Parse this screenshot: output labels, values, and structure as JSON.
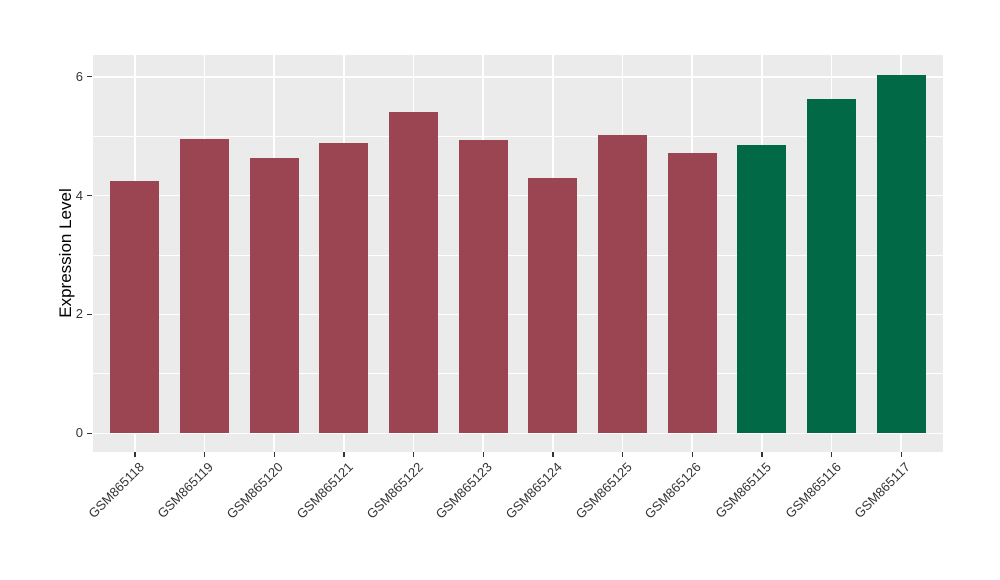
{
  "figure": {
    "title": "",
    "y_axis_title": "Expression Level"
  },
  "chart_data": {
    "type": "bar",
    "title": "",
    "xlabel": "",
    "ylabel": "Expression Level",
    "categories": [
      "GSM865118",
      "GSM865119",
      "GSM865120",
      "GSM865121",
      "GSM865122",
      "GSM865123",
      "GSM865124",
      "GSM865125",
      "GSM865126",
      "GSM865115",
      "GSM865116",
      "GSM865117"
    ],
    "values": [
      4.25,
      4.95,
      4.64,
      4.89,
      5.41,
      4.94,
      4.3,
      5.02,
      4.72,
      4.85,
      5.62,
      6.03
    ],
    "bar_colors": [
      "#9A4551",
      "#9A4551",
      "#9A4551",
      "#9A4551",
      "#9A4551",
      "#9A4551",
      "#9A4551",
      "#9A4551",
      "#9A4551",
      "#026947",
      "#026947",
      "#026947"
    ],
    "group_colors": {
      "maroon_group": "#9A4551",
      "green_group": "#026947"
    },
    "yticks": [
      0,
      2,
      4,
      6
    ],
    "minor_yticks": [
      1,
      3,
      5
    ],
    "ylim": [
      0,
      6.37
    ],
    "grid": "horizontal major+minor, vertical major at category centers",
    "legend": "none",
    "panel_background": "#EBEBEB",
    "grid_color": "#FFFFFF",
    "axis_text_color": "#333333"
  }
}
